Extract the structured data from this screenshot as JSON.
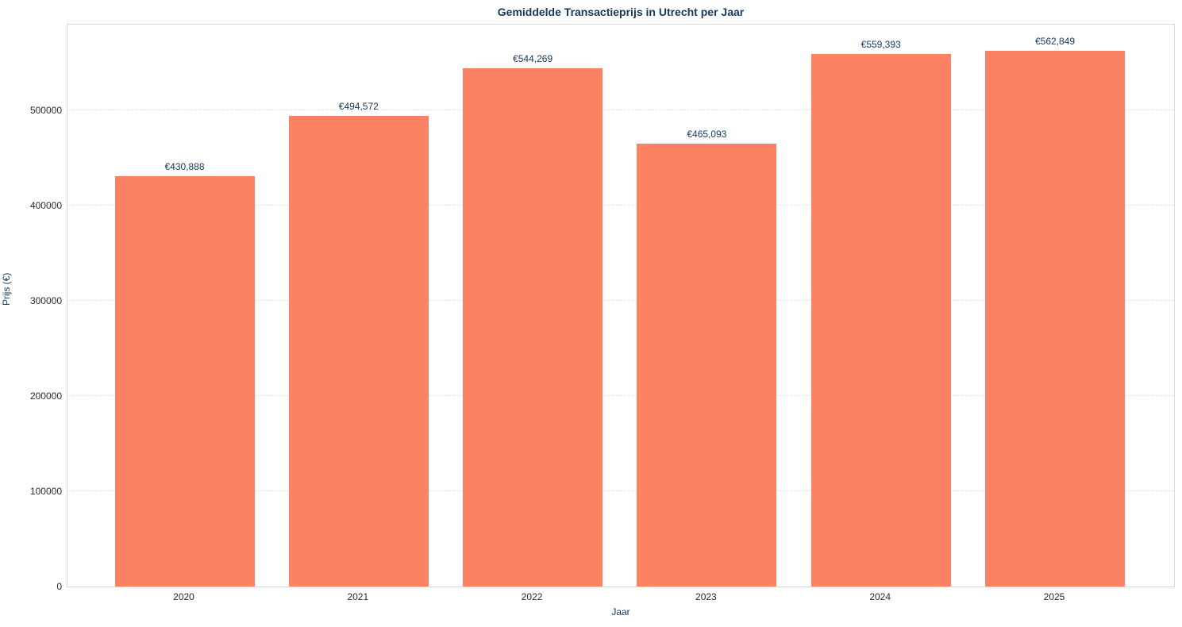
{
  "chart_data": {
    "type": "bar",
    "title": "Gemiddelde Transactieprijs in Utrecht per Jaar",
    "xlabel": "Jaar",
    "ylabel": "Prijs (€)",
    "categories": [
      "2020",
      "2021",
      "2022",
      "2023",
      "2024",
      "2025"
    ],
    "values": [
      430888,
      494572,
      544269,
      465093,
      559393,
      562849
    ],
    "value_labels": [
      "€430,888",
      "€494,572",
      "€544,269",
      "€465,093",
      "€559,393",
      "€562,849"
    ],
    "yticks": [
      0,
      100000,
      200000,
      300000,
      400000,
      500000
    ],
    "ytick_labels": [
      "0",
      "100000",
      "200000",
      "300000",
      "400000",
      "500000"
    ],
    "ylim": [
      0,
      591667
    ],
    "grid": "horizontal-dashed",
    "legend": "none",
    "bar_color": "#fc8264",
    "title_color": "#15395e",
    "axis_label_color": "#15395e",
    "tick_label_color": "#2b2b2b"
  }
}
